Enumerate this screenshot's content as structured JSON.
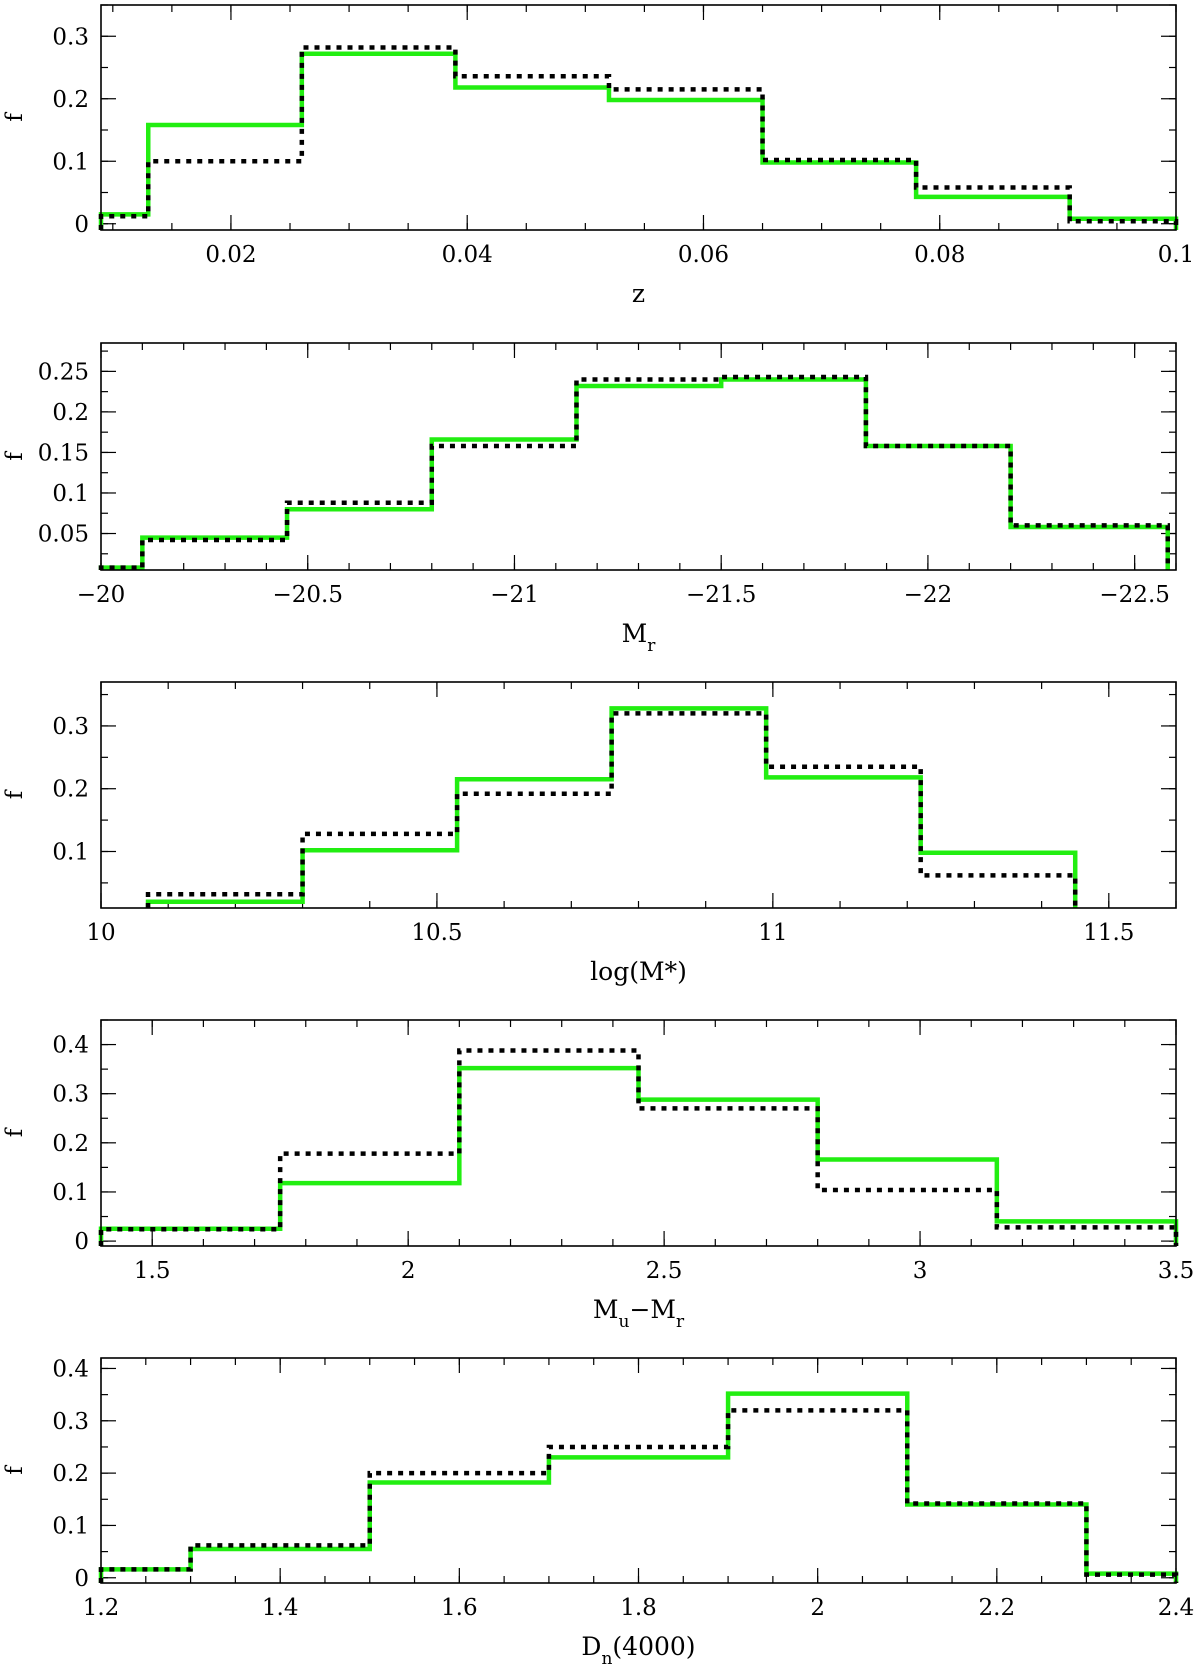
{
  "colors": {
    "green_series": "#22ee11",
    "black_series": "#000000"
  },
  "chart_data": [
    {
      "type": "histogram",
      "xlabel": "z",
      "ylabel": "f",
      "xlim": [
        0.009,
        0.1
      ],
      "ylim": [
        -0.01,
        0.35
      ],
      "xticks": [
        {
          "v": 0.02,
          "label": "0.02"
        },
        {
          "v": 0.04,
          "label": "0.04"
        },
        {
          "v": 0.06,
          "label": "0.06"
        },
        {
          "v": 0.08,
          "label": "0.08"
        },
        {
          "v": 0.1,
          "label": "0.1"
        }
      ],
      "yticks": [
        {
          "v": 0,
          "label": "0"
        },
        {
          "v": 0.1,
          "label": "0.1"
        },
        {
          "v": 0.2,
          "label": "0.2"
        },
        {
          "v": 0.3,
          "label": "0.3"
        }
      ],
      "xminor": 0.005,
      "yminor": 0.05,
      "bin_edges": [
        0.009,
        0.013,
        0.026,
        0.039,
        0.052,
        0.065,
        0.078,
        0.091,
        0.1
      ],
      "series": [
        {
          "style": "solid-green",
          "values": [
            0.015,
            0.158,
            0.272,
            0.218,
            0.198,
            0.098,
            0.043,
            0.008
          ]
        },
        {
          "style": "dotted-black",
          "values": [
            0.012,
            0.1,
            0.282,
            0.236,
            0.215,
            0.102,
            0.058,
            0.004
          ]
        }
      ]
    },
    {
      "type": "histogram",
      "xlabel": "M",
      "xlabel_sub": "r",
      "ylabel": "f",
      "xlim": [
        -20,
        -22.6
      ],
      "ylim": [
        0.005,
        0.285
      ],
      "xticks": [
        {
          "v": -20,
          "label": "−20"
        },
        {
          "v": -20.5,
          "label": "−20.5"
        },
        {
          "v": -21,
          "label": "−21"
        },
        {
          "v": -21.5,
          "label": "−21.5"
        },
        {
          "v": -22,
          "label": "−22"
        },
        {
          "v": -22.5,
          "label": "−22.5"
        }
      ],
      "yticks": [
        {
          "v": 0.05,
          "label": "0.05"
        },
        {
          "v": 0.1,
          "label": "0.1"
        },
        {
          "v": 0.15,
          "label": "0.15"
        },
        {
          "v": 0.2,
          "label": "0.2"
        },
        {
          "v": 0.25,
          "label": "0.25"
        }
      ],
      "xminor": -0.1,
      "yminor": 0.025,
      "bin_edges": [
        -20,
        -20.1,
        -20.45,
        -20.8,
        -21.15,
        -21.5,
        -21.85,
        -22.2,
        -22.58
      ],
      "series": [
        {
          "style": "solid-green",
          "values": [
            0.008,
            0.045,
            0.08,
            0.166,
            0.232,
            0.24,
            0.158,
            0.058
          ]
        },
        {
          "style": "dotted-black",
          "values": [
            0.008,
            0.042,
            0.088,
            0.158,
            0.24,
            0.243,
            0.158,
            0.06
          ]
        }
      ]
    },
    {
      "type": "histogram",
      "xlabel": "log(M*)",
      "ylabel": "f",
      "xlim": [
        10,
        11.6
      ],
      "ylim": [
        0.01,
        0.37
      ],
      "xticks": [
        {
          "v": 10,
          "label": "10"
        },
        {
          "v": 10.5,
          "label": "10.5"
        },
        {
          "v": 11,
          "label": "11"
        },
        {
          "v": 11.5,
          "label": "11.5"
        }
      ],
      "yticks": [
        {
          "v": 0.1,
          "label": "0.1"
        },
        {
          "v": 0.2,
          "label": "0.2"
        },
        {
          "v": 0.3,
          "label": "0.3"
        }
      ],
      "xminor": 0.1,
      "yminor": 0.05,
      "bin_edges": [
        10.07,
        10.3,
        10.53,
        10.76,
        10.99,
        11.22,
        11.45
      ],
      "series": [
        {
          "style": "solid-green",
          "values": [
            0.02,
            0.102,
            0.215,
            0.328,
            0.218,
            0.098
          ]
        },
        {
          "style": "dotted-black",
          "values": [
            0.032,
            0.128,
            0.192,
            0.32,
            0.235,
            0.062
          ]
        }
      ]
    },
    {
      "type": "histogram",
      "xlabel": "M",
      "xlabel_sub": "u",
      "xlabel_mid": "−M",
      "xlabel_sub2": "r",
      "ylabel": "f",
      "xlim": [
        1.4,
        3.5
      ],
      "ylim": [
        -0.01,
        0.45
      ],
      "xticks": [
        {
          "v": 1.5,
          "label": "1.5"
        },
        {
          "v": 2,
          "label": "2"
        },
        {
          "v": 2.5,
          "label": "2.5"
        },
        {
          "v": 3,
          "label": "3"
        },
        {
          "v": 3.5,
          "label": "3.5"
        }
      ],
      "yticks": [
        {
          "v": 0,
          "label": "0"
        },
        {
          "v": 0.1,
          "label": "0.1"
        },
        {
          "v": 0.2,
          "label": "0.2"
        },
        {
          "v": 0.3,
          "label": "0.3"
        },
        {
          "v": 0.4,
          "label": "0.4"
        }
      ],
      "xminor": 0.1,
      "yminor": 0.05,
      "bin_edges": [
        1.4,
        1.75,
        2.1,
        2.45,
        2.8,
        3.15,
        3.5
      ],
      "series": [
        {
          "style": "solid-green",
          "values": [
            0.025,
            0.118,
            0.352,
            0.288,
            0.166,
            0.04
          ]
        },
        {
          "style": "dotted-black",
          "values": [
            0.024,
            0.178,
            0.388,
            0.27,
            0.104,
            0.028
          ]
        }
      ]
    },
    {
      "type": "histogram",
      "xlabel": "D",
      "xlabel_sub": "n",
      "xlabel_tail": "(4000)",
      "ylabel": "f",
      "xlim": [
        1.2,
        2.4
      ],
      "ylim": [
        -0.01,
        0.42
      ],
      "xticks": [
        {
          "v": 1.2,
          "label": "1.2"
        },
        {
          "v": 1.4,
          "label": "1.4"
        },
        {
          "v": 1.6,
          "label": "1.6"
        },
        {
          "v": 1.8,
          "label": "1.8"
        },
        {
          "v": 2,
          "label": "2"
        },
        {
          "v": 2.2,
          "label": "2.2"
        },
        {
          "v": 2.4,
          "label": "2.4"
        }
      ],
      "yticks": [
        {
          "v": 0,
          "label": "0"
        },
        {
          "v": 0.1,
          "label": "0.1"
        },
        {
          "v": 0.2,
          "label": "0.2"
        },
        {
          "v": 0.3,
          "label": "0.3"
        },
        {
          "v": 0.4,
          "label": "0.4"
        }
      ],
      "xminor": 0.05,
      "yminor": 0.05,
      "bin_edges": [
        1.2,
        1.3,
        1.5,
        1.7,
        1.9,
        2.1,
        2.3,
        2.4
      ],
      "series": [
        {
          "style": "solid-green",
          "values": [
            0.016,
            0.055,
            0.182,
            0.23,
            0.352,
            0.14,
            0.008
          ]
        },
        {
          "style": "dotted-black",
          "values": [
            0.016,
            0.062,
            0.2,
            0.25,
            0.32,
            0.142,
            0.006
          ]
        }
      ]
    }
  ]
}
